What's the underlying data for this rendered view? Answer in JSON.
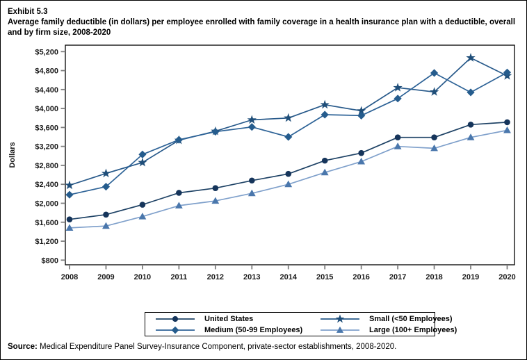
{
  "header": {
    "exhibit": "Exhibit 5.3",
    "title": "Average family deductible (in dollars) per employee enrolled with family coverage in a health insurance plan with a deductible, overall and by firm size, 2008-2020"
  },
  "chart_data": {
    "type": "line",
    "title": "Average family deductible (in dollars) per employee enrolled with family coverage in a health insurance plan with a deductible, overall and by firm size, 2008-2020",
    "xlabel": "",
    "ylabel": "Dollars",
    "ylim": [
      800,
      5200
    ],
    "yticks": [
      800,
      1200,
      1600,
      2000,
      2400,
      2800,
      3200,
      3600,
      4000,
      4400,
      4800,
      5200
    ],
    "grid": false,
    "legend_position": "bottom",
    "categories": [
      "2008",
      "2009",
      "2010",
      "2011",
      "2012",
      "2013",
      "2014",
      "2015",
      "2016",
      "2017",
      "2018",
      "2019",
      "2020"
    ],
    "series": [
      {
        "name": "United States",
        "marker": "circle",
        "marker_color": "#16355B",
        "line_color": "#1E4265",
        "values": [
          1660,
          1760,
          1970,
          2220,
          2320,
          2480,
          2620,
          2900,
          3060,
          3390,
          3390,
          3660,
          3710
        ]
      },
      {
        "name": "Small (<50 Employees)",
        "marker": "star",
        "marker_color": "#1F4E79",
        "line_color": "#27598A",
        "values": [
          2380,
          2630,
          2860,
          3330,
          3520,
          3760,
          3800,
          4080,
          3950,
          4440,
          4350,
          5070,
          4690
        ]
      },
      {
        "name": "Medium (50-99 Employees)",
        "marker": "diamond",
        "marker_color": "#255C8D",
        "line_color": "#2E6397",
        "values": [
          2180,
          2350,
          3030,
          3340,
          3510,
          3610,
          3400,
          3870,
          3850,
          4210,
          4750,
          4340,
          4760
        ]
      },
      {
        "name": "Large (100+ Employees)",
        "marker": "triangle",
        "marker_color": "#4A77AC",
        "line_color": "#7FA0CB",
        "values": [
          1480,
          1520,
          1720,
          1950,
          2050,
          2210,
          2400,
          2650,
          2880,
          3200,
          3160,
          3390,
          3540
        ]
      }
    ]
  },
  "footer": {
    "source_label": "Source:",
    "source_text": " Medical Expenditure Panel Survey-Insurance Component, private-sector establishments, 2008-2020."
  }
}
